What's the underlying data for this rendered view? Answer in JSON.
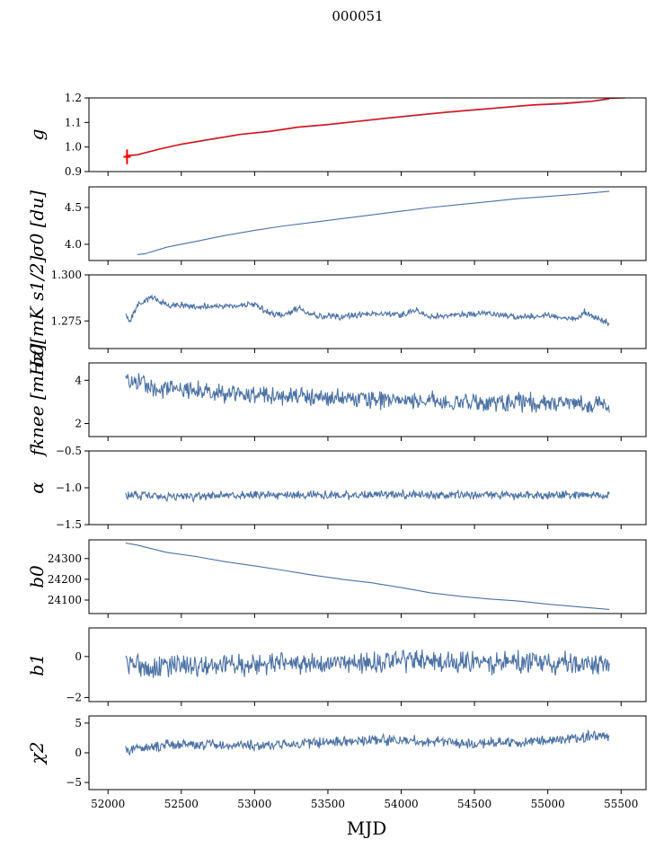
{
  "title": "000051",
  "xlabel": "MJD",
  "colors": {
    "series": "#4c72a4",
    "overlay": "#ff0000",
    "frame": "#000000"
  },
  "chart_data": [
    {
      "type": "line",
      "id": "g",
      "ylabel": "g",
      "xlim": [
        51870,
        55670
      ],
      "ylim": [
        0.9,
        1.2
      ],
      "yticks": [
        0.9,
        1.0,
        1.1,
        1.2
      ],
      "ytick_labels": [
        "0.9",
        "1.0",
        "1.1",
        "1.2"
      ],
      "series": [
        {
          "name": "g",
          "color": "#4c72a4",
          "x": [
            52120,
            52200,
            52350,
            52500,
            52700,
            52900,
            53100,
            53300,
            53500,
            53700,
            53900,
            54100,
            54300,
            54500,
            54700,
            54900,
            55100,
            55300,
            55420
          ],
          "y": [
            0.963,
            0.967,
            0.99,
            1.01,
            1.03,
            1.05,
            1.062,
            1.08,
            1.09,
            1.103,
            1.116,
            1.128,
            1.14,
            1.15,
            1.16,
            1.17,
            1.175,
            1.185,
            1.195
          ]
        },
        {
          "name": "g (red)",
          "color": "#ff0000",
          "x": [
            52120,
            52200,
            52350,
            52500,
            52700,
            52900,
            53100,
            53300,
            53500,
            53700,
            53900,
            54100,
            54300,
            54500,
            54700,
            54900,
            55100,
            55300,
            55420,
            55530
          ],
          "y": [
            0.965,
            0.969,
            0.992,
            1.012,
            1.032,
            1.052,
            1.064,
            1.082,
            1.092,
            1.105,
            1.118,
            1.13,
            1.142,
            1.152,
            1.162,
            1.172,
            1.178,
            1.187,
            1.198,
            1.2
          ]
        }
      ],
      "errorbar": {
        "x": 52130,
        "low": 0.93,
        "high": 0.99
      }
    },
    {
      "type": "line",
      "id": "sigma0-du",
      "ylabel": "σ0 [du]",
      "xlim": [
        51870,
        55670
      ],
      "ylim": [
        3.78,
        4.78
      ],
      "yticks": [
        4.0,
        4.5
      ],
      "ytick_labels": [
        "4.0",
        "4.5"
      ],
      "series": [
        {
          "name": "sigma0",
          "color": "#4c72a4",
          "x": [
            52200,
            52250,
            52400,
            52600,
            52800,
            53000,
            53200,
            53400,
            53600,
            53800,
            54000,
            54200,
            54400,
            54600,
            54800,
            55000,
            55200,
            55420
          ],
          "y": [
            3.86,
            3.87,
            3.96,
            4.04,
            4.12,
            4.19,
            4.25,
            4.3,
            4.35,
            4.4,
            4.45,
            4.5,
            4.54,
            4.58,
            4.62,
            4.65,
            4.68,
            4.72
          ]
        }
      ]
    },
    {
      "type": "line",
      "id": "sigma0-mk",
      "ylabel": "σ0[mK s1/2]",
      "xlim": [
        51870,
        55670
      ],
      "ylim": [
        1.26,
        1.3
      ],
      "yticks": [
        1.275,
        1.3
      ],
      "ytick_labels": [
        "1.275",
        "1.300"
      ],
      "series": [
        {
          "name": "sigma0 mK",
          "color": "#4c72a4",
          "x": [
            52120,
            52150,
            52200,
            52300,
            52400,
            52600,
            52800,
            53000,
            53100,
            53200,
            53300,
            53400,
            53600,
            53800,
            54000,
            54100,
            54200,
            54400,
            54600,
            54800,
            55000,
            55200,
            55250,
            55300,
            55420
          ],
          "y": [
            1.278,
            1.274,
            1.284,
            1.288,
            1.284,
            1.283,
            1.283,
            1.284,
            1.279,
            1.278,
            1.282,
            1.278,
            1.277,
            1.279,
            1.278,
            1.281,
            1.277,
            1.278,
            1.279,
            1.277,
            1.278,
            1.276,
            1.28,
            1.277,
            1.274
          ]
        }
      ]
    },
    {
      "type": "line",
      "id": "fknee",
      "ylabel": "fknee [mHz]",
      "xlim": [
        51870,
        55670
      ],
      "ylim": [
        1.4,
        4.8
      ],
      "yticks": [
        2,
        4
      ],
      "ytick_labels": [
        "2",
        "4"
      ],
      "series": [
        {
          "name": "fknee",
          "color": "#4c72a4",
          "x": [
            52120,
            52300,
            52600,
            53000,
            53500,
            54000,
            54500,
            55000,
            55420
          ],
          "y": [
            4.0,
            3.7,
            3.5,
            3.3,
            3.2,
            3.1,
            3.0,
            3.0,
            2.8
          ]
        }
      ]
    },
    {
      "type": "line",
      "id": "alpha",
      "ylabel": "α",
      "xlim": [
        51870,
        55670
      ],
      "ylim": [
        -1.5,
        -0.5
      ],
      "yticks": [
        -1.5,
        -1.0,
        -0.5
      ],
      "ytick_labels": [
        "−1.5",
        "−1.0",
        "−0.5"
      ],
      "series": [
        {
          "name": "alpha",
          "color": "#4c72a4",
          "x": [
            52120,
            52500,
            53000,
            53500,
            54000,
            54500,
            55000,
            55420
          ],
          "y": [
            -1.1,
            -1.12,
            -1.1,
            -1.1,
            -1.09,
            -1.1,
            -1.1,
            -1.1
          ]
        }
      ]
    },
    {
      "type": "line",
      "id": "b0",
      "ylabel": "b0",
      "xlim": [
        51870,
        55670
      ],
      "ylim": [
        24035,
        24390
      ],
      "yticks": [
        24100,
        24200,
        24300
      ],
      "ytick_labels": [
        "24100",
        "24200",
        "24300"
      ],
      "series": [
        {
          "name": "b0",
          "color": "#4c72a4",
          "x": [
            52120,
            52200,
            52400,
            52600,
            52800,
            53000,
            53200,
            53400,
            53600,
            53800,
            54000,
            54200,
            54400,
            54600,
            54800,
            55000,
            55200,
            55420
          ],
          "y": [
            24375,
            24365,
            24330,
            24310,
            24285,
            24265,
            24243,
            24220,
            24200,
            24183,
            24160,
            24135,
            24118,
            24105,
            24095,
            24080,
            24068,
            24055
          ]
        }
      ]
    },
    {
      "type": "line",
      "id": "b1",
      "ylabel": "b1",
      "xlim": [
        51870,
        55670
      ],
      "ylim": [
        -2.2,
        1.4
      ],
      "yticks": [
        -2,
        0
      ],
      "ytick_labels": [
        "−2",
        "0"
      ],
      "series": [
        {
          "name": "b1",
          "color": "#4c72a4",
          "x": [
            52120,
            52500,
            53000,
            53500,
            54000,
            54500,
            55000,
            55420
          ],
          "y": [
            -0.4,
            -0.5,
            -0.4,
            -0.3,
            -0.2,
            -0.3,
            -0.3,
            -0.4
          ]
        }
      ]
    },
    {
      "type": "line",
      "id": "chi2",
      "ylabel": "χ2",
      "xlim": [
        51870,
        55670
      ],
      "ylim": [
        -6.2,
        6.2
      ],
      "yticks": [
        -5,
        0,
        5
      ],
      "ytick_labels": [
        "−5",
        "0",
        "5"
      ],
      "series": [
        {
          "name": "chi2",
          "color": "#4c72a4",
          "x": [
            52120,
            52500,
            53000,
            53500,
            54000,
            54500,
            55000,
            55420
          ],
          "y": [
            0.5,
            1.5,
            1.2,
            1.8,
            2.2,
            1.5,
            2.0,
            3.0
          ]
        }
      ]
    }
  ],
  "xticks": [
    52000,
    52500,
    53000,
    53500,
    54000,
    54500,
    55000,
    55500
  ],
  "xtick_labels": [
    "52000",
    "52500",
    "53000",
    "53500",
    "54000",
    "54500",
    "55000",
    "55500"
  ]
}
